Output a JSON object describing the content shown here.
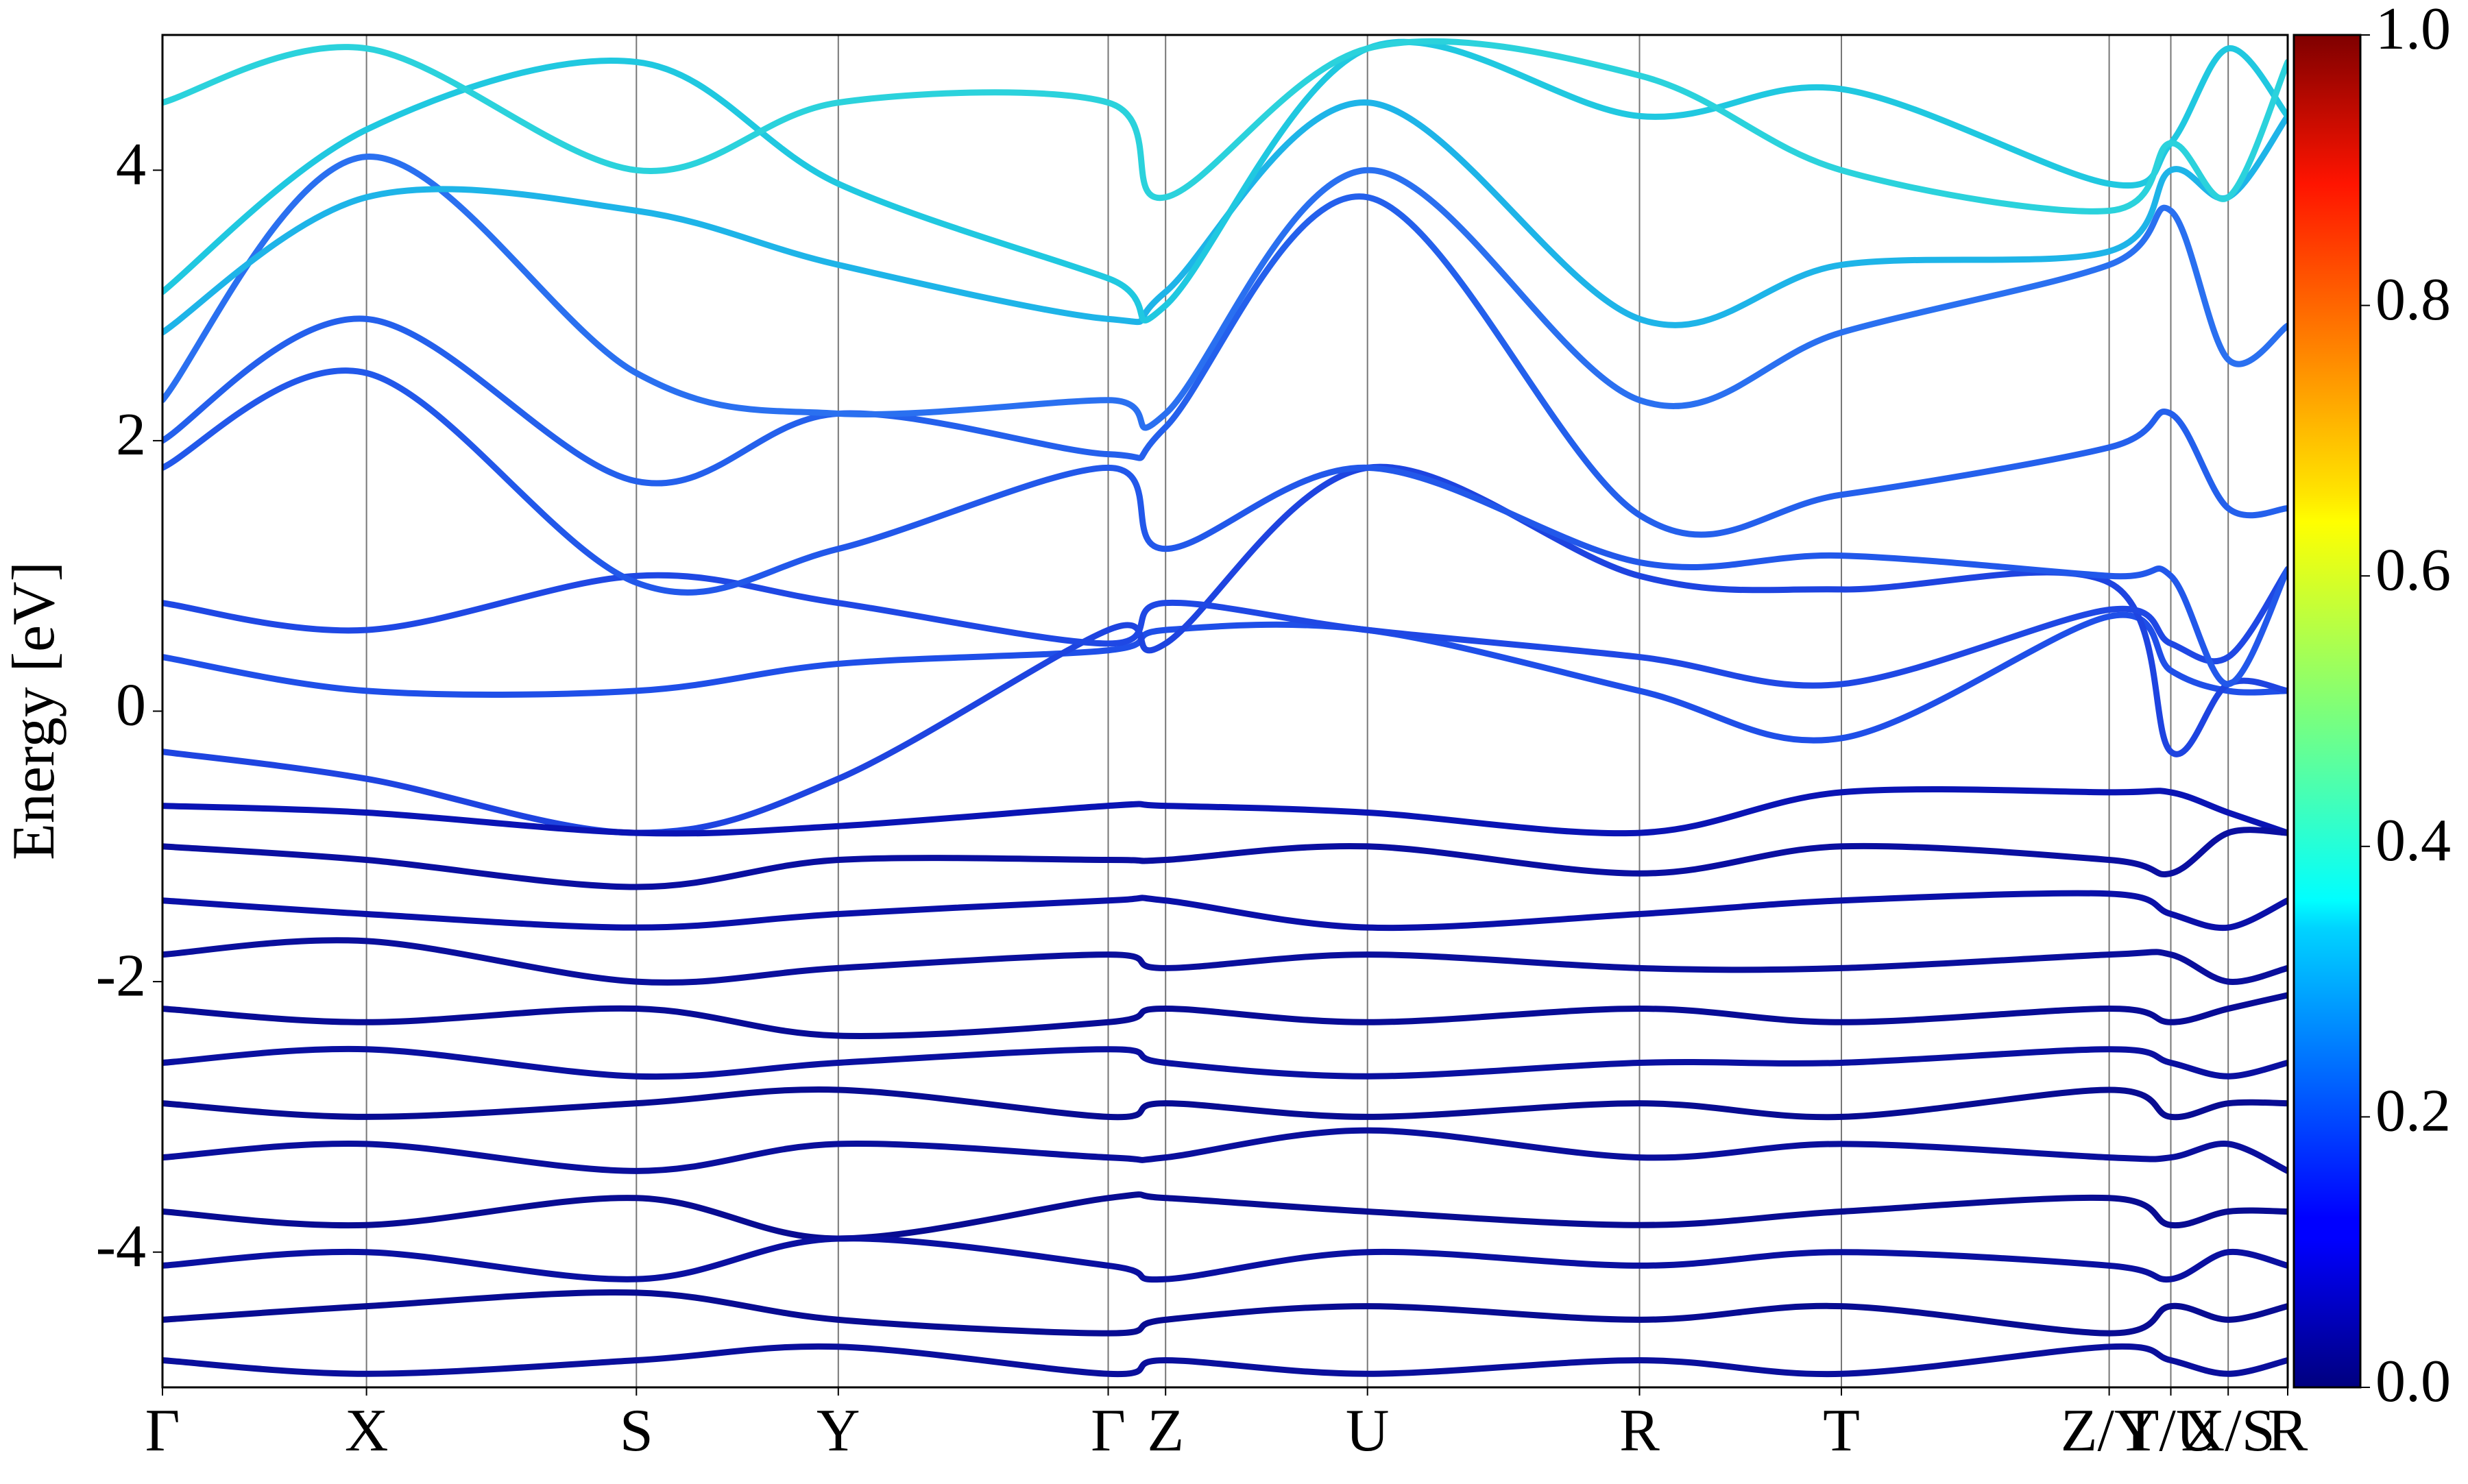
{
  "chart_data": {
    "type": "band",
    "ylabel": "Energy [eV]",
    "x": [
      0,
      0.096,
      0.223,
      0.318,
      0.445,
      0.472,
      0.567,
      0.695,
      0.79,
      0.916,
      0.945,
      0.972,
      1
    ],
    "xlim": [
      0,
      1
    ],
    "xticks": [
      {
        "value": 0,
        "label": "Γ"
      },
      {
        "value": 0.096,
        "label": "X"
      },
      {
        "value": 0.223,
        "label": "S"
      },
      {
        "value": 0.318,
        "label": "Y"
      },
      {
        "value": 0.445,
        "label": "Γ"
      },
      {
        "value": 0.472,
        "label": "Z"
      },
      {
        "value": 0.567,
        "label": "U"
      },
      {
        "value": 0.695,
        "label": "R"
      },
      {
        "value": 0.79,
        "label": "T"
      },
      {
        "value": 0.916,
        "label": "Z/Y"
      },
      {
        "value": 0.945,
        "label": "T/U"
      },
      {
        "value": 0.972,
        "label": "X/S"
      },
      {
        "value": 1,
        "label": "R"
      }
    ],
    "ylim": [
      -5,
      5
    ],
    "yticks": [
      -4,
      -2,
      0,
      2,
      4
    ],
    "vlines": true,
    "series": [
      {
        "color": "#1f4fe8",
        "values": [
          0.4,
          0.15,
          0.15,
          0.35,
          0.45,
          0.6,
          0.6,
          0.15,
          -0.2,
          0.7,
          0.3,
          0.15,
          0.15
        ]
      },
      {
        "color": "#1e44e0",
        "values": [
          -0.3,
          -0.5,
          -0.9,
          -0.5,
          0.6,
          0.5,
          1.8,
          1.0,
          0.9,
          0.95,
          -0.3,
          0.2,
          0.15
        ]
      },
      {
        "color": "#1f48e4",
        "values": [
          0.8,
          0.6,
          1.0,
          0.8,
          0.5,
          0.8,
          0.6,
          0.4,
          0.2,
          0.75,
          0.5,
          0.4,
          1.05
        ]
      },
      {
        "color": "#2258ea",
        "values": [
          1.8,
          2.5,
          0.95,
          1.2,
          1.8,
          1.2,
          1.8,
          1.1,
          1.15,
          1.0,
          1.0,
          0.2,
          1.05
        ]
      },
      {
        "color": "#2460ec",
        "values": [
          2.0,
          2.9,
          1.7,
          2.2,
          1.9,
          2.1,
          3.8,
          1.45,
          1.6,
          1.95,
          2.2,
          1.5,
          1.5
        ]
      },
      {
        "color": "#2a70f0",
        "values": [
          2.3,
          4.1,
          2.5,
          2.2,
          2.3,
          2.2,
          4.0,
          2.3,
          2.8,
          3.3,
          3.7,
          2.6,
          2.85
        ]
      },
      {
        "color": "#1eb4e8",
        "values": [
          2.8,
          3.8,
          3.7,
          3.3,
          2.9,
          3.1,
          4.5,
          2.9,
          3.3,
          3.4,
          4.0,
          3.8,
          4.4
        ]
      },
      {
        "color": "#20c8e0",
        "values": [
          3.1,
          4.3,
          4.8,
          3.9,
          3.2,
          3.0,
          4.9,
          4.4,
          4.6,
          3.9,
          4.2,
          4.9,
          4.4
        ]
      },
      {
        "color": "#2bd2dc",
        "values": [
          4.5,
          4.9,
          4.0,
          4.5,
          4.5,
          3.8,
          4.9,
          4.7,
          4.0,
          3.7,
          4.2,
          3.8,
          4.8
        ]
      },
      {
        "color": "#0a14b4",
        "values": [
          -0.7,
          -0.75,
          -0.9,
          -0.85,
          -0.7,
          -0.7,
          -0.75,
          -0.9,
          -0.6,
          -0.6,
          -0.6,
          -0.75,
          -0.9
        ]
      },
      {
        "color": "#0a0fa0",
        "values": [
          -1.0,
          -1.1,
          -1.3,
          -1.1,
          -1.1,
          -1.1,
          -1.0,
          -1.2,
          -1.0,
          -1.1,
          -1.2,
          -0.9,
          -0.9
        ]
      },
      {
        "color": "#0a10a8",
        "values": [
          -1.4,
          -1.5,
          -1.6,
          -1.5,
          -1.4,
          -1.4,
          -1.6,
          -1.5,
          -1.4,
          -1.35,
          -1.5,
          -1.6,
          -1.4
        ]
      },
      {
        "color": "#0a0f9c",
        "values": [
          -1.8,
          -1.7,
          -2.0,
          -1.9,
          -1.8,
          -1.9,
          -1.8,
          -1.9,
          -1.9,
          -1.8,
          -1.8,
          -2.0,
          -1.9
        ]
      },
      {
        "color": "#080c96",
        "values": [
          -2.2,
          -2.3,
          -2.2,
          -2.4,
          -2.3,
          -2.2,
          -2.3,
          -2.2,
          -2.3,
          -2.2,
          -2.3,
          -2.2,
          -2.1
        ]
      },
      {
        "color": "#0a10a0",
        "values": [
          -2.6,
          -2.5,
          -2.7,
          -2.6,
          -2.5,
          -2.6,
          -2.7,
          -2.6,
          -2.6,
          -2.5,
          -2.6,
          -2.7,
          -2.6
        ]
      },
      {
        "color": "#080c92",
        "values": [
          -2.9,
          -3.0,
          -2.9,
          -2.8,
          -3.0,
          -2.9,
          -3.0,
          -2.9,
          -3.0,
          -2.8,
          -3.0,
          -2.9,
          -2.9
        ]
      },
      {
        "color": "#0a0f9c",
        "values": [
          -3.3,
          -3.2,
          -3.4,
          -3.2,
          -3.3,
          -3.3,
          -3.1,
          -3.3,
          -3.2,
          -3.3,
          -3.3,
          -3.2,
          -3.4
        ]
      },
      {
        "color": "#080c92",
        "values": [
          -3.7,
          -3.8,
          -3.6,
          -3.9,
          -3.6,
          -3.6,
          -3.7,
          -3.8,
          -3.7,
          -3.6,
          -3.8,
          -3.7,
          -3.7
        ]
      },
      {
        "color": "#0a10a0",
        "values": [
          -4.1,
          -4.0,
          -4.2,
          -3.9,
          -4.1,
          -4.2,
          -4.0,
          -4.1,
          -4.0,
          -4.1,
          -4.2,
          -4.0,
          -4.1
        ]
      },
      {
        "color": "#080c92",
        "values": [
          -4.5,
          -4.4,
          -4.3,
          -4.5,
          -4.6,
          -4.5,
          -4.4,
          -4.5,
          -4.4,
          -4.6,
          -4.4,
          -4.5,
          -4.4
        ]
      },
      {
        "color": "#0a0f9c",
        "values": [
          -4.8,
          -4.9,
          -4.8,
          -4.7,
          -4.9,
          -4.8,
          -4.9,
          -4.8,
          -4.9,
          -4.7,
          -4.8,
          -4.9,
          -4.8
        ]
      }
    ],
    "colorbar": {
      "colormap": "jet",
      "lim": [
        0,
        1
      ],
      "ticks": [
        {
          "value": 0,
          "label": "0.0"
        },
        0.2,
        0.4,
        0.6,
        0.8,
        {
          "value": 1,
          "label": "1.0"
        }
      ]
    }
  }
}
